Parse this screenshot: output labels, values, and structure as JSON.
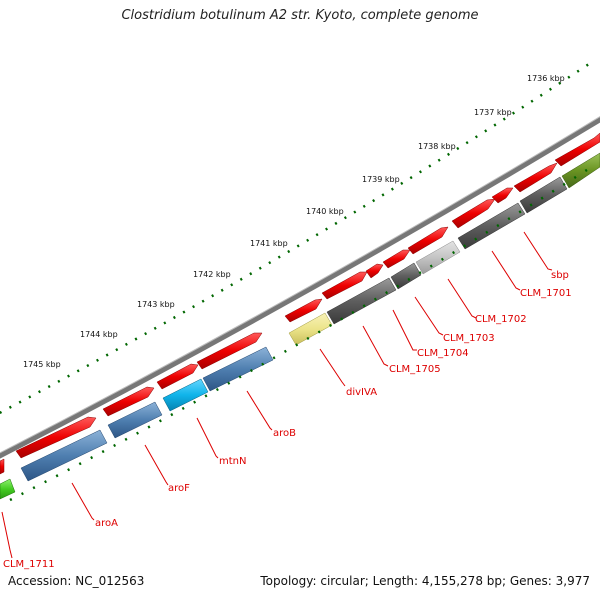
{
  "title": "Clostridium botulinum A2 str. Kyoto, complete genome",
  "accession_text": "Accession: NC_012563",
  "topology_text": "Topology: circular; Length: 4,155,278 bp; Genes: 3,977",
  "colors": {
    "backbone": "#7a7a7a",
    "forward_gene": "#ee0000",
    "reverse_gene": "#4f7fb0",
    "dark_gray_gene": "#5e5e5e",
    "light_gray_gene": "#c4c4c4",
    "yellow_gene": "#ece48a",
    "cyan_gene": "#10b4ea",
    "olive_gene": "#6a9422",
    "green_gene": "#44cc22",
    "tick": "#006600",
    "label": "#dd0000"
  },
  "scale_labels": [
    "1736 kbp",
    "1737 kbp",
    "1738 kbp",
    "1739 kbp",
    "1740 kbp",
    "1741 kbp",
    "1742 kbp",
    "1743 kbp",
    "1744 kbp",
    "1745 kbp"
  ],
  "gene_labels": [
    "sbp",
    "CLM_1701",
    "CLM_1702",
    "CLM_1703",
    "CLM_1704",
    "CLM_1705",
    "divIVA",
    "aroB",
    "mtnN",
    "aroF",
    "aroA",
    "CLM_1711"
  ]
}
